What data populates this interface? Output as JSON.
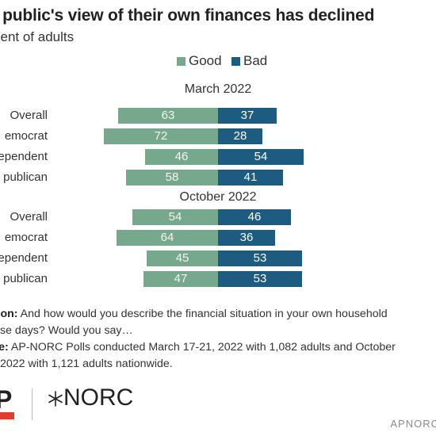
{
  "title": "e public's view of their own finances has declined",
  "subtitle": "cent of adults",
  "legend": {
    "good": "Good",
    "bad": "Bad"
  },
  "colors": {
    "good": "#76a88e",
    "bad": "#1d5b80",
    "good_text": "#f3f3f3",
    "bad_text": "#ffffff"
  },
  "chart_data": {
    "type": "bar",
    "orientation": "horizontal-diverging",
    "series": [
      {
        "name": "Good",
        "color": "#76a88e"
      },
      {
        "name": "Bad",
        "color": "#1d5b80"
      }
    ],
    "groups": [
      {
        "label": "March 2022",
        "rows": [
          {
            "category": "Overall",
            "good": 63,
            "bad": 37
          },
          {
            "category": "emocrat",
            "good": 72,
            "bad": 28
          },
          {
            "category": "ependent",
            "good": 46,
            "bad": 54
          },
          {
            "category": "publican",
            "good": 58,
            "bad": 41
          }
        ]
      },
      {
        "label": "October 2022",
        "rows": [
          {
            "category": "Overall",
            "good": 54,
            "bad": 46
          },
          {
            "category": "emocrat",
            "good": 64,
            "bad": 36
          },
          {
            "category": "ependent",
            "good": 45,
            "bad": 53
          },
          {
            "category": "publican",
            "good": 47,
            "bad": 53
          }
        ]
      }
    ]
  },
  "notes": {
    "question_label": "estion:",
    "question_text": " And how would you describe the financial situation in your own household",
    "question_text_2": "se days? Would you say…",
    "source_label": "urce:",
    "source_text": " AP-NORC Polls conducted March 17-21, 2022 with 1,082 adults and October",
    "source_text_2": "2022 with 1,121 adults nationwide."
  },
  "footer": {
    "ap_logo": "P",
    "norc_logo": "NORC",
    "source_mark": "APNORC"
  }
}
